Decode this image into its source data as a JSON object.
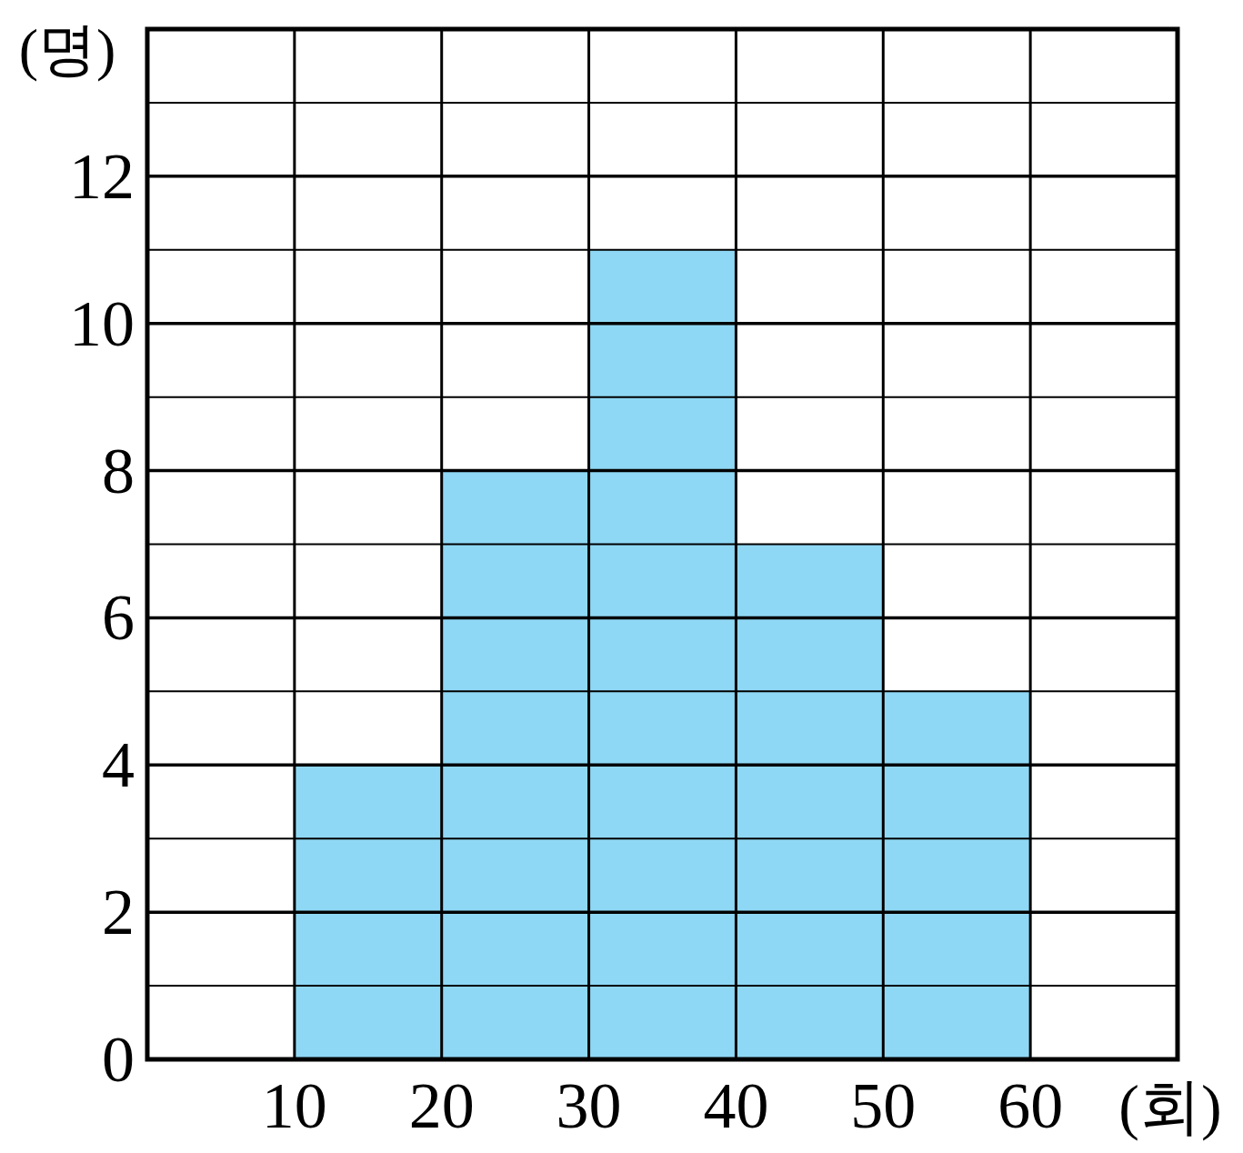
{
  "chart_data": {
    "type": "histogram",
    "xlabel": "(회)",
    "ylabel": "(명)",
    "color": "#8fd8f5",
    "bins": [
      10,
      20,
      30,
      40,
      50,
      60
    ],
    "values": [
      4,
      8,
      11,
      7,
      5
    ],
    "xlim": [
      0,
      70
    ],
    "ylim": [
      0,
      14
    ],
    "xticks": [
      10,
      20,
      30,
      40,
      50,
      60
    ],
    "yticks": [
      0,
      {
        "value": 1,
        "label": null
      },
      2,
      {
        "value": 3,
        "label": null
      },
      4,
      {
        "value": 5,
        "label": null
      },
      6,
      {
        "value": 7,
        "label": null
      },
      8,
      {
        "value": 9,
        "label": null
      },
      10,
      {
        "value": 11,
        "label": null
      },
      12,
      {
        "value": 13,
        "label": null
      }
    ],
    "grid": true
  }
}
